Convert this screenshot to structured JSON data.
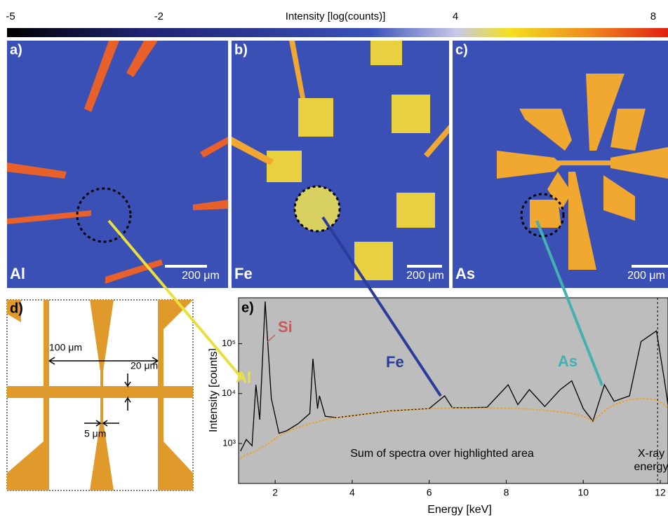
{
  "colorbar": {
    "label": "Intensity [log(counts)]",
    "lim": [
      -5,
      8.2
    ],
    "ticks": [
      -5,
      -2,
      4,
      8
    ]
  },
  "panels": [
    {
      "letter": "a)",
      "element": "Al",
      "scale_bar": "200 μm"
    },
    {
      "letter": "b)",
      "element": "Fe",
      "scale_bar": "200 μm"
    },
    {
      "letter": "c)",
      "element": "As",
      "scale_bar": "200 μm"
    }
  ],
  "schematic": {
    "letter": "d)",
    "dimensions": [
      "100 μm",
      "20 μm",
      "5 μm"
    ]
  },
  "chart_data": {
    "type": "line",
    "panel": "e)",
    "x_label": "Energy [keV]",
    "y_label": "Intensity [counts]",
    "y_scale": "log",
    "xlim": [
      1.05,
      12.2
    ],
    "xticks": [
      2,
      4,
      6,
      8,
      10,
      12
    ],
    "ylim": [
      158,
      830000
    ],
    "yticks": [
      {
        "value": 1000,
        "label": "10³"
      },
      {
        "value": 10000,
        "label": "10⁴"
      },
      {
        "value": 100000,
        "label": "10⁵"
      }
    ],
    "x": [
      1.1,
      1.25,
      1.4,
      1.5,
      1.6,
      1.74,
      1.9,
      2.1,
      2.3,
      2.6,
      2.9,
      2.98,
      3.1,
      3.15,
      3.3,
      3.6,
      4,
      5,
      6,
      6.4,
      6.6,
      7,
      7.5,
      8.05,
      8.3,
      8.6,
      9,
      9.4,
      9.7,
      10,
      10.25,
      10.55,
      10.8,
      11.2,
      11.5,
      11.9,
      12.1,
      12.2
    ],
    "series": [
      {
        "color": "#000000",
        "values": [
          700,
          1200,
          900,
          15000,
          3000,
          700000,
          8000,
          1600,
          1800,
          2500,
          4000,
          50000,
          5000,
          9000,
          3500,
          3300,
          3600,
          4500,
          5000,
          9000,
          5200,
          5200,
          5300,
          15000,
          6000,
          12000,
          5500,
          12000,
          18000,
          5000,
          2800,
          15000,
          7000,
          9000,
          110000,
          180000,
          20000,
          6000
        ]
      },
      {
        "color": "#e8a33a",
        "values": [
          500,
          600,
          650,
          700,
          800,
          900,
          1100,
          1400,
          1700,
          2100,
          2500,
          2600,
          2700,
          2800,
          3000,
          3300,
          3600,
          4500,
          5000,
          5100,
          5100,
          5100,
          5100,
          5100,
          5000,
          4900,
          4600,
          4300,
          4000,
          3500,
          2800,
          4500,
          6000,
          7500,
          8000,
          7500,
          6000,
          5000
        ]
      }
    ],
    "annotations": [
      {
        "text": "Si",
        "color": "#c65a5a"
      },
      {
        "text": "Al",
        "color": "#e8e040"
      },
      {
        "text": "Fe",
        "color": "#2c3a9a"
      },
      {
        "text": "As",
        "color": "#45b0b0"
      }
    ],
    "note": "Sum of spectra over highlighted area",
    "energy_line": 11.93,
    "energy_text": [
      "X-ray",
      "energy"
    ]
  }
}
